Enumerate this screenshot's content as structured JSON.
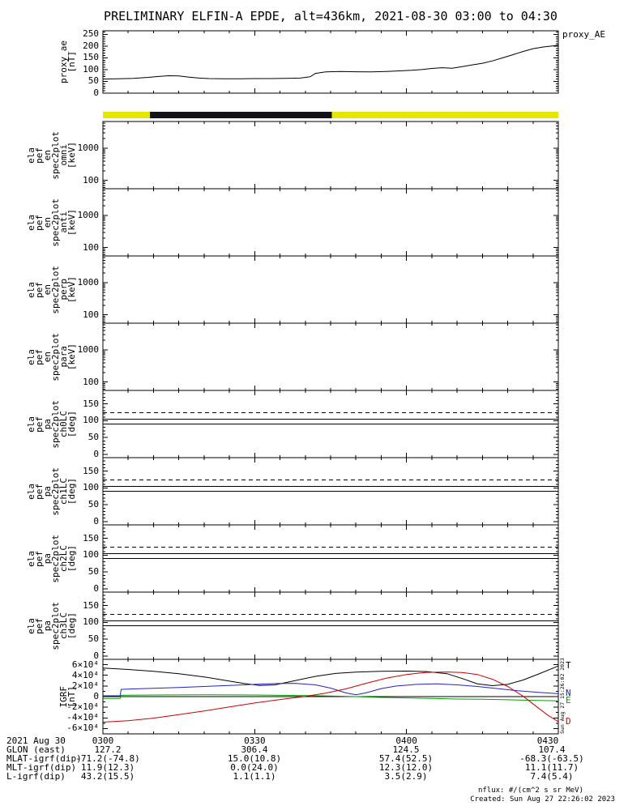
{
  "title": "PRELIMINARY ELFIN-A EPDE, alt=436km, 2021-08-30 03:00 to 04:30",
  "side_note": "Sun Aug 27 15:26:02 2023",
  "footer": {
    "nflux": "nflux: #/(cm^2 s sr MeV)",
    "created": "Created: Sun Aug 27 22:26:02 2023"
  },
  "x_axis": {
    "range_minutes": [
      0,
      90
    ],
    "minor_step_minutes": 5,
    "ticks_minutes": [
      0,
      30,
      60,
      90
    ],
    "labels": [
      "0300",
      "0330",
      "0400",
      "0430"
    ]
  },
  "ephemeris": {
    "date_label": "2021 Aug 30",
    "rows": [
      {
        "label": "GLON (east)",
        "values": [
          "127.2",
          "306.4",
          "124.5",
          "107.4"
        ]
      },
      {
        "label": "MLAT-igrf(dip)",
        "values": [
          "-71.2(-74.8)",
          "15.0(10.8)",
          "57.4(52.5)",
          "-68.3(-63.5)"
        ]
      },
      {
        "label": "MLT-igrf(dip)",
        "values": [
          "11.9(12.3)",
          "0.0(24.0)",
          "12.3(12.0)",
          "11.1(11.7)"
        ]
      },
      {
        "label": "L-igrf(dip)",
        "values": [
          "43.2(15.5)",
          "1.1(1.1)",
          "3.5(2.9)",
          "7.4(5.4)"
        ]
      }
    ]
  },
  "chart_data": [
    {
      "id": "proxy_ae",
      "type": "line",
      "ylabel_words": [
        "proxy_ae",
        "[nT]"
      ],
      "right_label": "proxy_AE",
      "ylim": [
        0,
        265
      ],
      "yticks": [
        0,
        50,
        100,
        150,
        200,
        250
      ],
      "yminor": [
        10,
        20,
        30,
        40,
        60,
        70,
        80,
        90,
        110,
        120,
        130,
        140,
        160,
        170,
        180,
        190,
        210,
        220,
        230,
        240,
        260
      ],
      "series": [
        {
          "name": "proxy_AE",
          "color": "#000000",
          "x": [
            0,
            3,
            6,
            9,
            11,
            13,
            15,
            17,
            19,
            21,
            24,
            27,
            30,
            33,
            36,
            39,
            41,
            42,
            44,
            47,
            50,
            53,
            56,
            59,
            61,
            63,
            65,
            67,
            69,
            71,
            73,
            75,
            77,
            79,
            81,
            83,
            85,
            87,
            89,
            90
          ],
          "y": [
            60,
            61,
            63,
            67,
            71,
            74,
            73,
            68,
            64,
            62,
            61,
            61,
            62,
            62,
            63,
            64,
            70,
            84,
            90,
            92,
            91,
            90,
            92,
            95,
            97,
            100,
            105,
            108,
            106,
            113,
            120,
            127,
            137,
            150,
            163,
            177,
            189,
            196,
            201,
            204
          ]
        }
      ]
    },
    {
      "id": "eclipse_bar",
      "type": "bar-strip",
      "segments": [
        {
          "color": "#e6e600",
          "from": 0.0,
          "to": 0.103
        },
        {
          "color": "#121218",
          "from": 0.103,
          "to": 0.503
        },
        {
          "color": "#e6e600",
          "from": 0.503,
          "to": 1.0
        }
      ]
    },
    {
      "id": "en_omni",
      "type": "spectrogram",
      "ylabel_words": [
        "ela",
        "pef",
        "en",
        "spec2plot",
        "omni",
        "[keV]"
      ],
      "yscale": "log",
      "ylim": [
        55,
        6800
      ],
      "yticks": [
        100,
        1000
      ],
      "ytick_labels": [
        "100",
        "1000"
      ],
      "yminor": [
        60,
        70,
        80,
        90,
        200,
        300,
        400,
        500,
        600,
        700,
        800,
        900,
        2000,
        3000,
        4000,
        5000,
        6000
      ],
      "series": []
    },
    {
      "id": "en_anti",
      "type": "spectrogram",
      "ylabel_words": [
        "ela",
        "pef",
        "en",
        "spec2plot",
        "anti",
        "[keV]"
      ],
      "yscale": "log",
      "ylim": [
        55,
        6800
      ],
      "yticks": [
        100,
        1000
      ],
      "ytick_labels": [
        "100",
        "1000"
      ],
      "yminor": [
        60,
        70,
        80,
        90,
        200,
        300,
        400,
        500,
        600,
        700,
        800,
        900,
        2000,
        3000,
        4000,
        5000,
        6000
      ],
      "series": []
    },
    {
      "id": "en_perp",
      "type": "spectrogram",
      "ylabel_words": [
        "ela",
        "pef",
        "en",
        "spec2plot",
        "perp",
        "[keV]"
      ],
      "yscale": "log",
      "ylim": [
        55,
        6800
      ],
      "yticks": [
        100,
        1000
      ],
      "ytick_labels": [
        "100",
        "1000"
      ],
      "yminor": [
        60,
        70,
        80,
        90,
        200,
        300,
        400,
        500,
        600,
        700,
        800,
        900,
        2000,
        3000,
        4000,
        5000,
        6000
      ],
      "series": []
    },
    {
      "id": "en_para",
      "type": "spectrogram",
      "ylabel_words": [
        "ela",
        "pef",
        "en",
        "spec2plot",
        "para",
        "[keV]"
      ],
      "yscale": "log",
      "ylim": [
        55,
        6800
      ],
      "yticks": [
        100,
        1000
      ],
      "ytick_labels": [
        "100",
        "1000"
      ],
      "yminor": [
        60,
        70,
        80,
        90,
        200,
        300,
        400,
        500,
        600,
        700,
        800,
        900,
        2000,
        3000,
        4000,
        5000,
        6000
      ],
      "series": []
    },
    {
      "id": "pa_ch0",
      "type": "line",
      "ylabel_words": [
        "ela",
        "pef",
        "pa",
        "spec2plot",
        "ch0LC",
        "[deg]"
      ],
      "ylim": [
        -10,
        190
      ],
      "yticks": [
        0,
        50,
        100,
        150
      ],
      "yminor": [
        10,
        20,
        30,
        40,
        60,
        70,
        80,
        90,
        110,
        120,
        130,
        140,
        160,
        170,
        180
      ],
      "hlines": [
        {
          "style": "dashed",
          "value": 124
        },
        {
          "style": "solid",
          "value": 105
        },
        {
          "style": "solid",
          "value": 90
        }
      ],
      "series": []
    },
    {
      "id": "pa_ch1",
      "type": "line",
      "ylabel_words": [
        "ela",
        "pef",
        "pa",
        "spec2plot",
        "ch1LC",
        "[deg]"
      ],
      "ylim": [
        -10,
        190
      ],
      "yticks": [
        0,
        50,
        100,
        150
      ],
      "yminor": [
        10,
        20,
        30,
        40,
        60,
        70,
        80,
        90,
        110,
        120,
        130,
        140,
        160,
        170,
        180
      ],
      "hlines": [
        {
          "style": "dashed",
          "value": 124
        },
        {
          "style": "solid",
          "value": 105
        },
        {
          "style": "solid",
          "value": 90
        }
      ],
      "series": []
    },
    {
      "id": "pa_ch2",
      "type": "line",
      "ylabel_words": [
        "ela",
        "pef",
        "pa",
        "spec2plot",
        "ch2LC",
        "[deg]"
      ],
      "ylim": [
        -10,
        190
      ],
      "yticks": [
        0,
        50,
        100,
        150
      ],
      "yminor": [
        10,
        20,
        30,
        40,
        60,
        70,
        80,
        90,
        110,
        120,
        130,
        140,
        160,
        170,
        180
      ],
      "hlines": [
        {
          "style": "dashed",
          "value": 124
        },
        {
          "style": "solid",
          "value": 105
        },
        {
          "style": "solid",
          "value": 90
        }
      ],
      "series": []
    },
    {
      "id": "pa_ch3",
      "type": "line",
      "ylabel_words": [
        "ela",
        "pef",
        "pa",
        "spec2plot",
        "ch3LC",
        "[deg]"
      ],
      "ylim": [
        -10,
        190
      ],
      "yticks": [
        0,
        50,
        100,
        150
      ],
      "yminor": [
        10,
        20,
        30,
        40,
        60,
        70,
        80,
        90,
        110,
        120,
        130,
        140,
        160,
        170,
        180
      ],
      "hlines": [
        {
          "style": "dashed",
          "value": 124
        },
        {
          "style": "solid",
          "value": 105
        },
        {
          "style": "solid",
          "value": 90
        }
      ],
      "series": []
    },
    {
      "id": "igrf",
      "type": "line",
      "ylabel_words": [
        "IGRF",
        "[nT]"
      ],
      "ylim": [
        -70000,
        70000
      ],
      "yticks": [
        -60000,
        -40000,
        -20000,
        0,
        20000,
        40000,
        60000
      ],
      "ytick_labels": [
        "-6×10⁴",
        "-4×10⁴",
        "-2×10⁴",
        "0",
        "2×10⁴",
        "4×10⁴",
        "6×10⁴"
      ],
      "yminor": [
        -50000,
        -30000,
        -10000,
        10000,
        30000,
        50000
      ],
      "hlines": [
        {
          "style": "solid",
          "value": 0
        }
      ],
      "series": [
        {
          "name": "T",
          "color": "#000000",
          "end_label": true,
          "x": [
            0,
            5,
            10,
            15,
            20,
            25,
            28,
            31,
            34,
            38,
            42,
            46,
            50,
            55,
            60,
            64,
            68,
            71,
            74,
            77,
            80,
            83,
            86,
            90
          ],
          "y": [
            53500,
            51000,
            47500,
            43000,
            37000,
            29000,
            24500,
            21000,
            22000,
            30000,
            38000,
            43500,
            46000,
            47500,
            48000,
            47000,
            43000,
            34000,
            24000,
            20500,
            23000,
            31000,
            42000,
            57500
          ]
        },
        {
          "name": "N",
          "color": "#2222cc",
          "end_label": true,
          "x": [
            0,
            2,
            3.4,
            3.6,
            6,
            10,
            15,
            20,
            25,
            30,
            34,
            38,
            42,
            45,
            48,
            50,
            52,
            55,
            58,
            62,
            66,
            70,
            74,
            78,
            82,
            86,
            90
          ],
          "y": [
            1500,
            1500,
            1500,
            13500,
            14500,
            15500,
            17000,
            19000,
            21000,
            23000,
            24500,
            25000,
            22000,
            16000,
            7000,
            3500,
            7000,
            15000,
            20000,
            23000,
            24000,
            22000,
            19000,
            15000,
            11000,
            8000,
            5500
          ]
        },
        {
          "name": "E",
          "color": "#00a000",
          "end_label": true,
          "x": [
            0,
            3.4,
            3.6,
            10,
            20,
            30,
            40,
            45,
            50,
            55,
            60,
            65,
            70,
            75,
            80,
            85,
            90
          ],
          "y": [
            -3500,
            -3500,
            2500,
            3000,
            3500,
            3000,
            2000,
            1000,
            0,
            -1500,
            -2500,
            -3500,
            -4500,
            -5000,
            -6000,
            -7000,
            -8000
          ]
        },
        {
          "name": "D",
          "color": "#cc0000",
          "end_label": true,
          "x": [
            0,
            5,
            10,
            15,
            20,
            25,
            30,
            35,
            40,
            44,
            48,
            52,
            56,
            60,
            64,
            68,
            71,
            74,
            77,
            80,
            83,
            86,
            88,
            90
          ],
          "y": [
            -48000,
            -45200,
            -40500,
            -34000,
            -27000,
            -19500,
            -12000,
            -5500,
            500,
            6500,
            14500,
            25000,
            34500,
            41500,
            45500,
            46200,
            45300,
            41500,
            32500,
            19000,
            1000,
            -21000,
            -35500,
            -47000
          ]
        }
      ]
    }
  ]
}
